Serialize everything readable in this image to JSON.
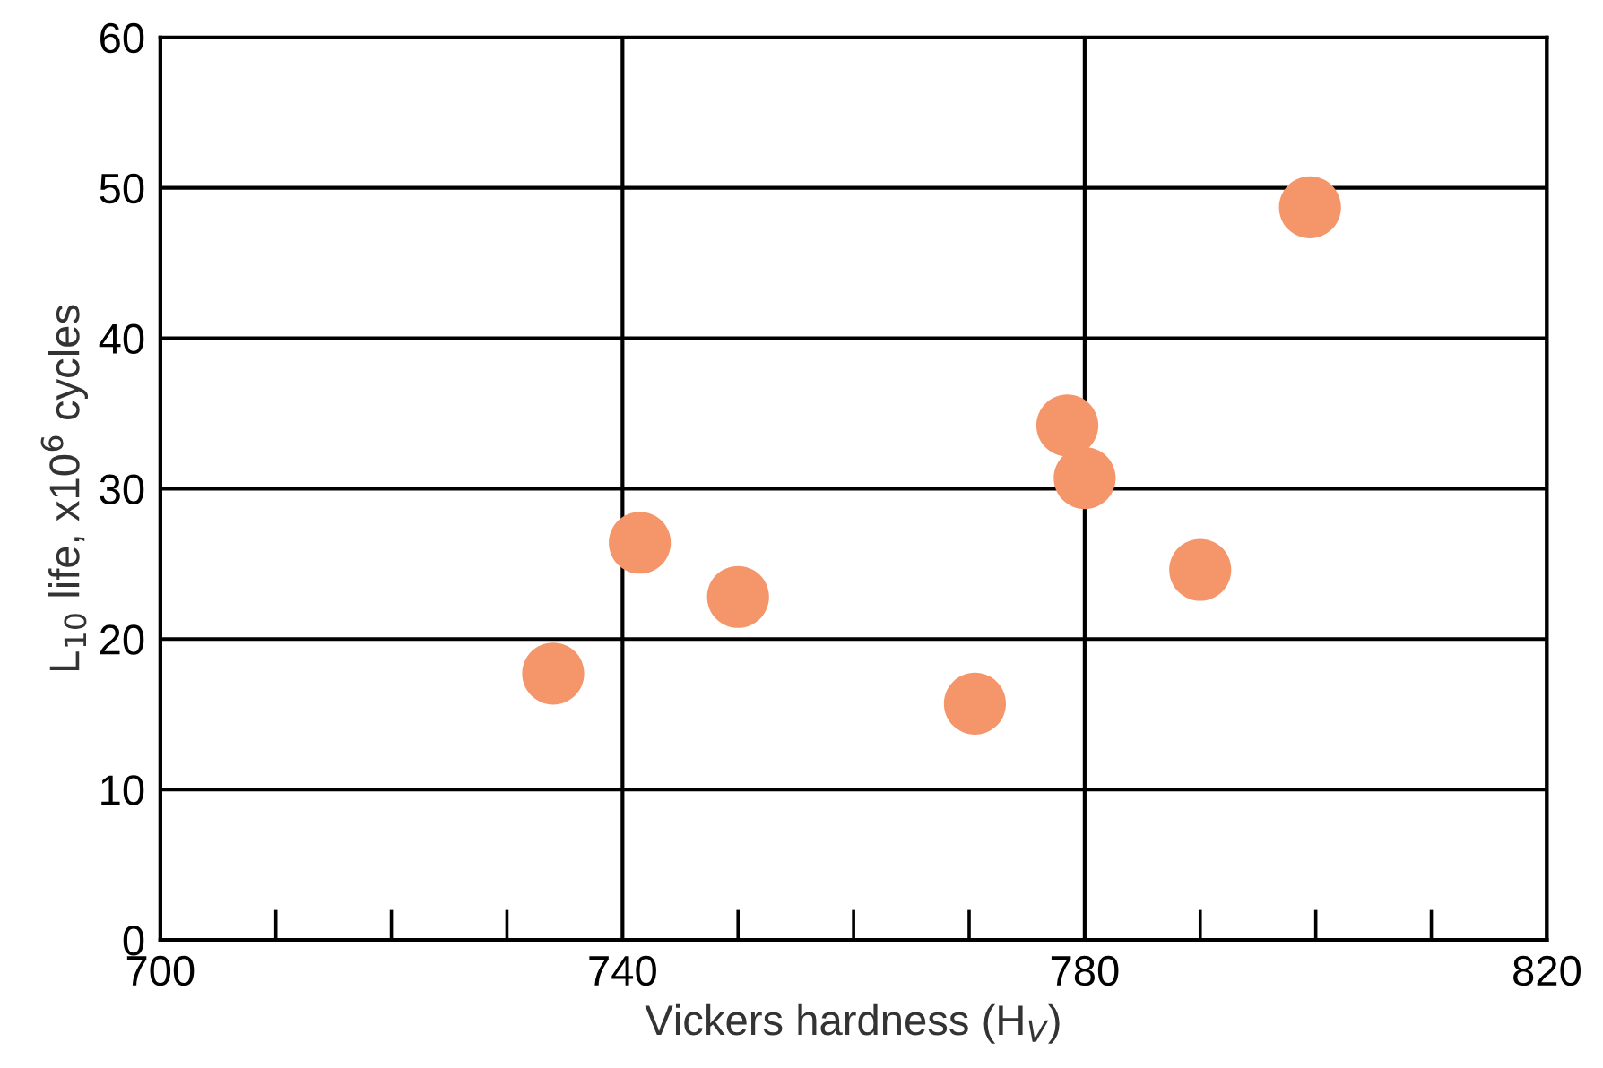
{
  "chart_data": {
    "type": "scatter",
    "xlabel": "Vickers hardness (H$_{V}$)",
    "ylabel": "L$_{10}$ life, x10$^{6}$ cycles",
    "x": [
      734,
      741.5,
      750,
      770.5,
      778.5,
      780,
      790,
      799.5
    ],
    "series": [
      {
        "color": "#f4956a",
        "values": [
          17.7,
          26.4,
          22.8,
          15.7,
          34.2,
          30.7,
          24.6,
          48.7
        ]
      }
    ],
    "marker": "circle",
    "xlim": [
      700,
      820
    ],
    "xticks": [
      700,
      740,
      780,
      820
    ],
    "ylim": [
      0,
      60
    ],
    "yticks": [
      0,
      10,
      20,
      30,
      40,
      50,
      60
    ],
    "grid": true
  }
}
